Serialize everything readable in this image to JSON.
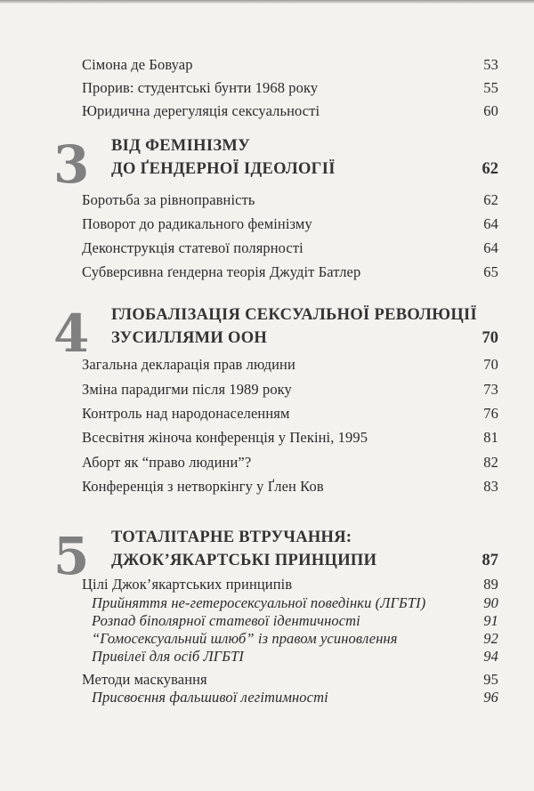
{
  "toc": {
    "pre_entries": [
      {
        "title": "Сімона де Бовуар",
        "page": "53"
      },
      {
        "title": "Прорив: студентські бунти 1968 року",
        "page": "55"
      },
      {
        "title": "Юридична дерегуляція сексуальності",
        "page": "60"
      }
    ],
    "chapters": [
      {
        "number": "3",
        "title_line1": "ВІД ФЕМІНІЗМУ",
        "title_line2": "ДО ҐЕНДЕРНОЇ ІДЕОЛОГІЇ",
        "page": "62",
        "entries": [
          {
            "title": "Боротьба за рівноправність",
            "page": "62"
          },
          {
            "title": "Поворот до радикального фемінізму",
            "page": "64"
          },
          {
            "title": "Деконструкція статевої полярності",
            "page": "64"
          },
          {
            "title": "Субверсивна ґендерна теорія Джудіт Батлер",
            "page": "65"
          }
        ]
      },
      {
        "number": "4",
        "title_line1": "ГЛОБАЛІЗАЦІЯ СЕКСУАЛЬНОЇ РЕВОЛЮЦІЇ",
        "title_line2": "ЗУСИЛЛЯМИ ООН",
        "page": "70",
        "entries": [
          {
            "title": "Загальна декларація прав людини",
            "page": "70"
          },
          {
            "title": "Зміна парадигми після 1989 року",
            "page": "73"
          },
          {
            "title": "Контроль над народонаселенням",
            "page": "76"
          },
          {
            "title": "Всесвітня жіноча конференція у Пекіні, 1995",
            "page": "81"
          },
          {
            "title": "Аборт як “право людини”?",
            "page": "82"
          },
          {
            "title": "Конференція з нетворкінгу у Ґлен Ков",
            "page": "83"
          }
        ]
      },
      {
        "number": "5",
        "title_line1": "ТОТАЛІТАРНЕ ВТРУЧАННЯ:",
        "title_line2": "ДЖОК’ЯКАРТСЬКІ ПРИНЦИПИ",
        "page": "87",
        "entries": [
          {
            "title": "Цілі Джок’якартських принципів",
            "page": "89"
          },
          {
            "title": "Прийняття не-гетеросексуальної поведінки (ЛГБТІ)",
            "page": "90",
            "italic": true
          },
          {
            "title": "Розпад біполярної статевої ідентичності",
            "page": "91",
            "italic": true
          },
          {
            "title": "“Гомосексуальний шлюб” із правом усиновлення",
            "page": "92",
            "italic": true
          },
          {
            "title": "Привілеї для осіб ЛГБТІ",
            "page": "94",
            "italic": true
          },
          {
            "title": "Методи маскування",
            "page": "95"
          },
          {
            "title": "Присвоєння фальшивої легітимності",
            "page": "96",
            "italic": true
          }
        ]
      }
    ]
  }
}
